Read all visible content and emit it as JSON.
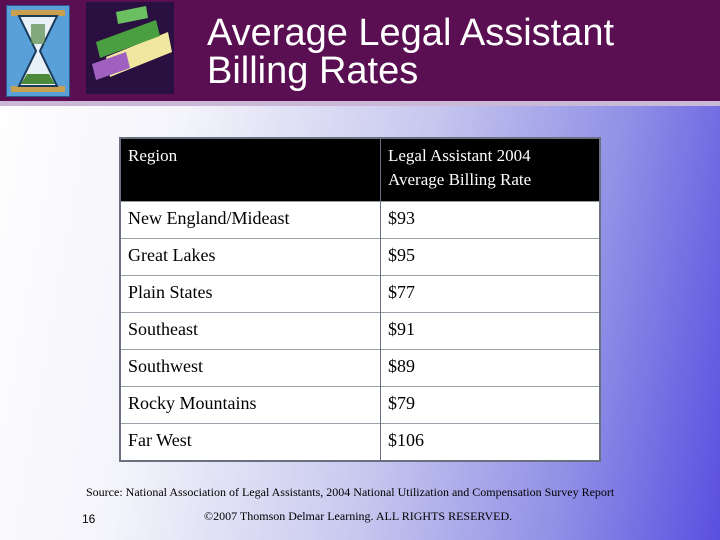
{
  "slide": {
    "title_line1": "Average Legal Assistant",
    "title_line2": "Billing Rates",
    "source": "Source:  National Association of Legal Assistants, 2004 National Utilization and Compensation Survey Report",
    "page_number": "16",
    "copyright": "©2007 Thomson Delmar Learning. ALL RIGHTS RESERVED."
  },
  "table": {
    "headers": [
      "Region",
      "Legal Assistant 2004",
      "Average Billing Rate"
    ],
    "rows": [
      {
        "region": "New England/Mideast",
        "rate": "$93"
      },
      {
        "region": "Great Lakes",
        "rate": "$95"
      },
      {
        "region": "Plain States",
        "rate": "$77"
      },
      {
        "region": "Southeast",
        "rate": "$91"
      },
      {
        "region": "Southwest",
        "rate": "$89"
      },
      {
        "region": "Rocky Mountains",
        "rate": "$79"
      },
      {
        "region": "Far West",
        "rate": "$106"
      }
    ]
  },
  "colors": {
    "header_bg": "#5a0f52",
    "table_header_bg": "#000000"
  },
  "icons": [
    "hourglass-icon",
    "money-icon"
  ]
}
